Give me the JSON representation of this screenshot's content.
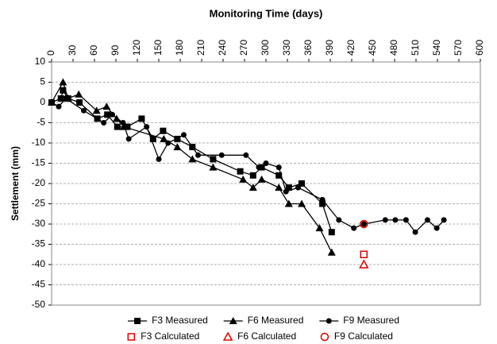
{
  "chart_data": {
    "type": "scatter",
    "title": "Monitoring Time (days)",
    "y_label": "Settlement (mm)",
    "xlim": [
      0,
      600
    ],
    "xticks": [
      0,
      30,
      60,
      90,
      120,
      150,
      180,
      210,
      240,
      270,
      300,
      330,
      360,
      390,
      420,
      450,
      480,
      510,
      540,
      570,
      600
    ],
    "ylim": [
      -50,
      10
    ],
    "yticks": [
      -50,
      -45,
      -40,
      -35,
      -30,
      -25,
      -20,
      -15,
      -10,
      -5,
      0,
      5,
      10
    ],
    "grid": true,
    "x_axis_position": "top",
    "legend_position": "bottom",
    "series": [
      {
        "name": "F3 Measured",
        "color": "#000000",
        "marker": "square",
        "hollow": false,
        "line": true,
        "x": [
          0,
          13,
          16,
          23,
          39,
          64,
          78,
          92,
          106,
          126,
          142,
          156,
          176,
          197,
          226,
          264,
          282,
          294,
          318,
          332,
          350,
          379,
          392
        ],
        "values": [
          0,
          1,
          3,
          1,
          0,
          -4,
          -3,
          -6,
          -6,
          -4,
          -9,
          -7,
          -9,
          -11,
          -14,
          -17,
          -18,
          -16,
          -18,
          -21,
          -20,
          -25,
          -32
        ]
      },
      {
        "name": "F6 Measured",
        "color": "#000000",
        "marker": "triangle",
        "hollow": false,
        "line": true,
        "x": [
          0,
          16,
          23,
          38,
          63,
          77,
          91,
          101,
          157,
          176,
          197,
          226,
          268,
          282,
          294,
          318,
          332,
          350,
          375,
          392
        ],
        "values": [
          0,
          5,
          1,
          2,
          -2,
          -1,
          -4,
          -6,
          -9,
          -11,
          -14,
          -16,
          -19,
          -21,
          -19,
          -21,
          -25,
          -25,
          -31,
          -37
        ]
      },
      {
        "name": "F9 Measured",
        "color": "#000000",
        "marker": "circle",
        "hollow": false,
        "line": true,
        "x": [
          0,
          10,
          20,
          45,
          73,
          85,
          100,
          108,
          133,
          150,
          163,
          185,
          205,
          238,
          272,
          290,
          300,
          318,
          328,
          345,
          379,
          402,
          423,
          437,
          467,
          481,
          496,
          509,
          526,
          539,
          549
        ],
        "values": [
          0,
          -1,
          1,
          -2,
          -5,
          -3,
          -5,
          -9,
          -6,
          -14,
          -10,
          -8,
          -13,
          -13,
          -13,
          -16,
          -15,
          -16,
          -22,
          -21,
          -24,
          -29,
          -31,
          -30,
          -29,
          -29,
          -29,
          -32,
          -29,
          -31,
          -29
        ]
      },
      {
        "name": "F3 Calculated",
        "color": "#e00000",
        "marker": "square",
        "hollow": true,
        "line": false,
        "x": [
          437
        ],
        "values": [
          -37.5
        ]
      },
      {
        "name": "F6 Calculated",
        "color": "#e00000",
        "marker": "triangle",
        "hollow": true,
        "line": false,
        "x": [
          437
        ],
        "values": [
          -40
        ]
      },
      {
        "name": "F9 Calculated",
        "color": "#e00000",
        "marker": "circle",
        "hollow": true,
        "line": false,
        "x": [
          437
        ],
        "values": [
          -30
        ]
      }
    ]
  }
}
